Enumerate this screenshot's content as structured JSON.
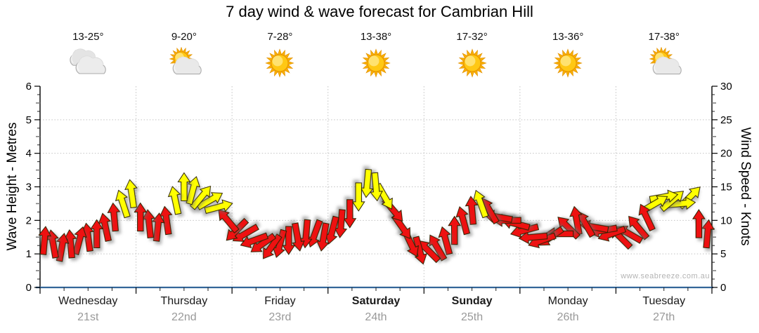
{
  "title": "7 day wind & wave forecast for Cambrian Hill",
  "watermark": "www.seabreeze.com.au",
  "colors": {
    "arrow_red": "#ee1111",
    "arrow_yellow": "#ffff00",
    "arrow_outline": "#2b2200",
    "x_axis_line": "#336699",
    "gridline": "#c2c2c2",
    "date_text": "#999999",
    "watermark_text": "#b4b4b4"
  },
  "days": [
    {
      "name": "Wednesday",
      "date": "21st",
      "temp": "13-25°",
      "icon": "cloudy",
      "bold": false
    },
    {
      "name": "Thursday",
      "date": "22nd",
      "temp": "9-20°",
      "icon": "partly-cloudy",
      "bold": false
    },
    {
      "name": "Friday",
      "date": "23rd",
      "temp": "7-28°",
      "icon": "sunny",
      "bold": false
    },
    {
      "name": "Saturday",
      "date": "24th",
      "temp": "13-38°",
      "icon": "sunny",
      "bold": true
    },
    {
      "name": "Sunday",
      "date": "25th",
      "temp": "17-32°",
      "icon": "sunny",
      "bold": true
    },
    {
      "name": "Monday",
      "date": "26th",
      "temp": "13-36°",
      "icon": "sunny",
      "bold": false
    },
    {
      "name": "Tuesday",
      "date": "27th",
      "temp": "17-38°",
      "icon": "partly-cloudy",
      "bold": false
    }
  ],
  "chart_data": {
    "type": "wind-arrow-series",
    "title": "7 day wind & wave forecast for Cambrian Hill",
    "left_axis": {
      "label": "Wave Height - Metres",
      "range": [
        0,
        6
      ],
      "ticks": [
        0,
        1,
        2,
        3,
        4,
        5,
        6
      ]
    },
    "right_axis": {
      "label": "Wind Speed - Knots",
      "range": [
        0,
        30
      ],
      "ticks": [
        0,
        5,
        10,
        15,
        20,
        25,
        30
      ]
    },
    "x_categories": [
      "Wednesday",
      "Thursday",
      "Friday",
      "Saturday",
      "Sunday",
      "Monday",
      "Tuesday"
    ],
    "points_per_day": 11,
    "grid": "dotted",
    "speeds_knots_by_day": [
      [
        7,
        6.5,
        6,
        6.5,
        7,
        7.5,
        8,
        9,
        10.5,
        12.5,
        14
      ],
      [
        10.5,
        9.5,
        9,
        10,
        13,
        15,
        14.5,
        13.5,
        13,
        12,
        10
      ],
      [
        8.5,
        8,
        7,
        6.5,
        6,
        6.5,
        7,
        7.5,
        8,
        8,
        7.5
      ],
      [
        8.5,
        9.5,
        11,
        13.5,
        15.5,
        15,
        13.5,
        11.5,
        9,
        6.5,
        5.5
      ],
      [
        5.5,
        6,
        7,
        8.5,
        10,
        11.5,
        12.5,
        11.5,
        10.5,
        10,
        9.5
      ],
      [
        8.5,
        7.5,
        7,
        7.5,
        8,
        9,
        10,
        9.5,
        9,
        8.5,
        8
      ],
      [
        7.5,
        8,
        9,
        10.5,
        12.5,
        13.5,
        13,
        12.5,
        13.5,
        9.5,
        8
      ]
    ],
    "directions_deg_by_day": [
      [
        5,
        -10,
        10,
        -5,
        15,
        -8,
        0,
        -12,
        -5,
        -18,
        -8
      ],
      [
        0,
        -6,
        6,
        -8,
        -12,
        0,
        15,
        40,
        60,
        75,
        -40
      ],
      [
        225,
        240,
        250,
        235,
        215,
        195,
        180,
        170,
        185,
        200,
        190
      ],
      [
        195,
        185,
        180,
        180,
        185,
        175,
        150,
        140,
        145,
        155,
        165
      ],
      [
        -45,
        -30,
        -15,
        0,
        -15,
        -5,
        -20,
        -30,
        -80,
        -90,
        -75
      ],
      [
        -105,
        -95,
        -110,
        -125,
        -90,
        -45,
        -10,
        -30,
        -80,
        -100,
        -110
      ],
      [
        -45,
        -60,
        -40,
        -25,
        60,
        80,
        50,
        85,
        45,
        0,
        5
      ]
    ],
    "arrow_colors_by_day": [
      "rrrrrrrrryy",
      "rrrryyyyyyr",
      "rrrrrrrrrrr",
      "rrryyyyrrrr",
      "rrrrrryrrrr",
      "rrrrrrrrrrr",
      "rrrryyyyyrr"
    ]
  }
}
